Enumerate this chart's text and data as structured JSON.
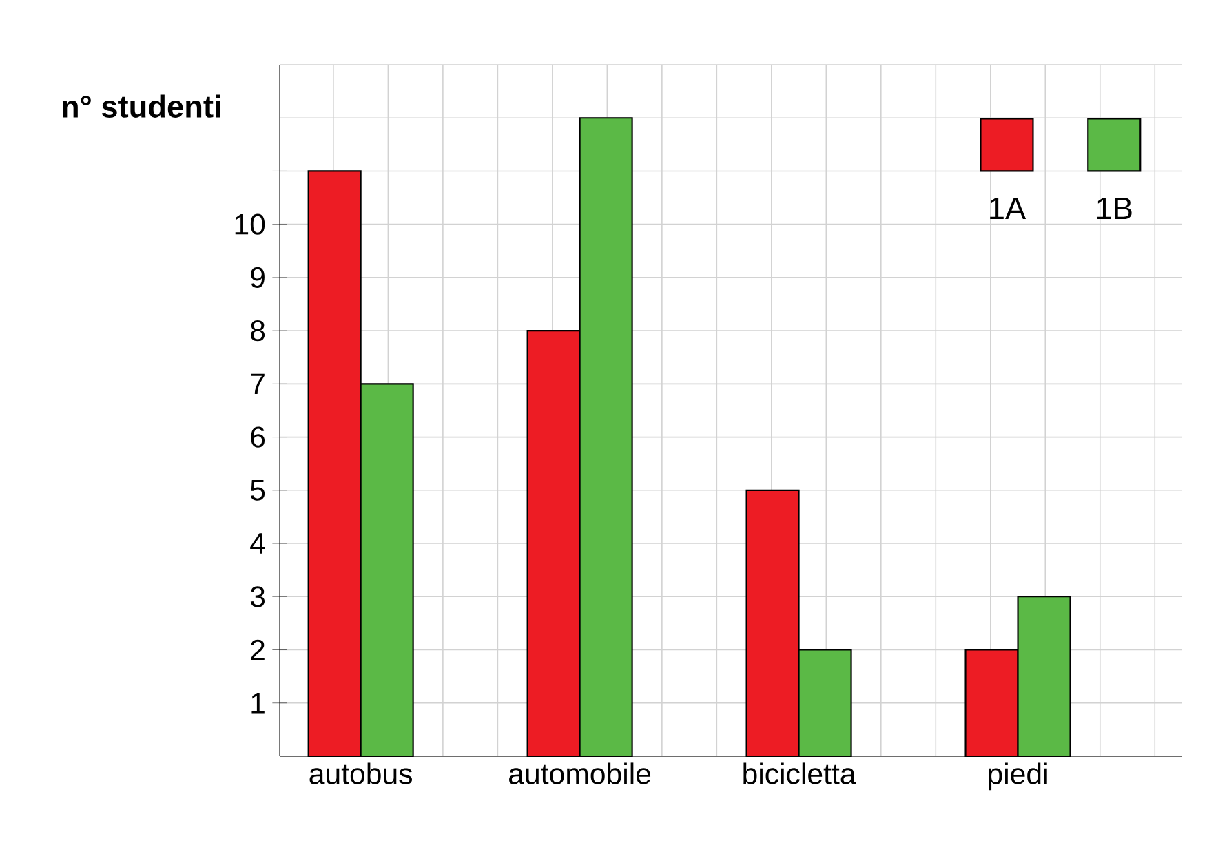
{
  "chart_data": {
    "type": "bar",
    "ylabel": "n° studenti",
    "categories": [
      "autobus",
      "automobile",
      "bicicletta",
      "piedi"
    ],
    "series": [
      {
        "name": "1A",
        "color": "#ed1c24",
        "values": [
          11,
          8,
          5,
          2
        ]
      },
      {
        "name": "1B",
        "color": "#5bb946",
        "values": [
          7,
          12,
          2,
          3
        ]
      }
    ],
    "ylim": [
      0,
      13
    ],
    "yticks": [
      1,
      2,
      3,
      4,
      5,
      6,
      7,
      8,
      9,
      10,
      {
        "value": 11,
        "label": null
      }
    ],
    "grid": true,
    "legend": "top right"
  }
}
